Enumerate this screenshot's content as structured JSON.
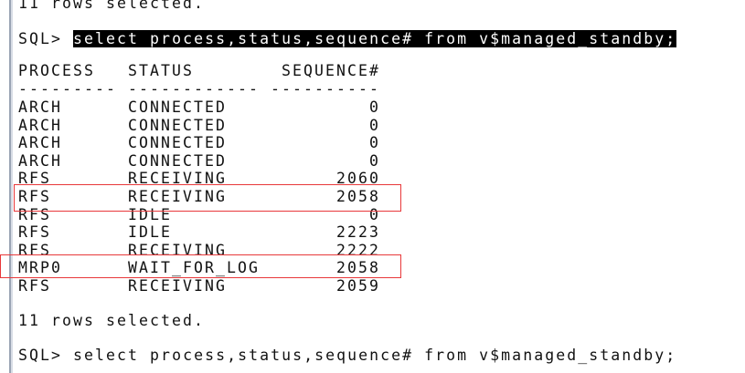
{
  "terminal": {
    "prev_result": "11 rows selected.",
    "prompt": "SQL> ",
    "query": "select process,status,sequence# from v$managed_standby;",
    "columns": [
      "PROCESS",
      "STATUS",
      "SEQUENCE#"
    ],
    "separators": [
      "---------",
      "------------",
      "----------"
    ],
    "rows": [
      [
        "ARCH",
        "CONNECTED",
        "0"
      ],
      [
        "ARCH",
        "CONNECTED",
        "0"
      ],
      [
        "ARCH",
        "CONNECTED",
        "0"
      ],
      [
        "ARCH",
        "CONNECTED",
        "0"
      ],
      [
        "RFS",
        "RECEIVING",
        "2060"
      ],
      [
        "RFS",
        "RECEIVING",
        "2058"
      ],
      [
        "RFS",
        "IDLE",
        "0"
      ],
      [
        "RFS",
        "IDLE",
        "2223"
      ],
      [
        "RFS",
        "RECEIVING",
        "2222"
      ],
      [
        "MRP0",
        "WAIT_FOR_LOG",
        "2058"
      ],
      [
        "RFS",
        "RECEIVING",
        "2059"
      ]
    ],
    "result": "11 rows selected.",
    "next_prompt": "SQL> ",
    "next_query": "select process,status,sequence# from v$managed_standby;",
    "highlight_color": "#e8383a"
  }
}
